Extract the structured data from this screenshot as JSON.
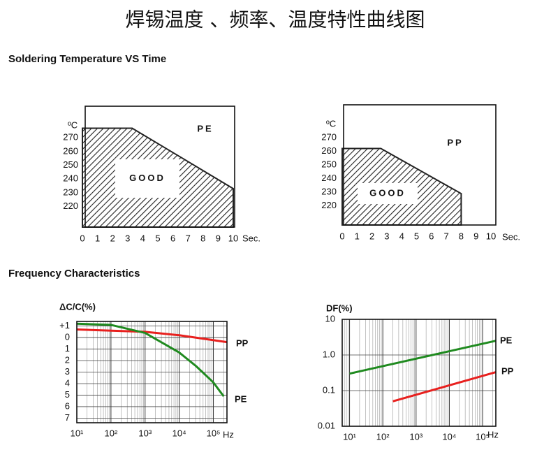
{
  "title": "焊锡温度 、频率、温度特性曲线图",
  "sections": [
    "Soldering Temperature VS Time",
    "Frequency Characteristics"
  ],
  "chart_data": [
    {
      "type": "area",
      "label": "PE",
      "annotation": "GOOD",
      "xlabel": "Sec.",
      "ylabel": "ºC",
      "x": [
        0,
        3.3,
        10
      ],
      "values": [
        277,
        277,
        233
      ],
      "color": "#222222",
      "xlim": [
        0,
        10
      ],
      "xticks": [
        0,
        1,
        2,
        3,
        4,
        5,
        6,
        7,
        8,
        9,
        10
      ],
      "ylim": [
        205,
        293
      ],
      "yticks": [
        220,
        230,
        240,
        250,
        260,
        270
      ]
    },
    {
      "type": "area",
      "label": "PP",
      "annotation": "GOOD",
      "xlabel": "Sec.",
      "ylabel": "ºC",
      "x": [
        0,
        2.6,
        8
      ],
      "values": [
        262,
        262,
        229
      ],
      "color": "#222222",
      "xlim": [
        0,
        10
      ],
      "xticks": [
        0,
        1,
        2,
        3,
        4,
        5,
        6,
        7,
        8,
        9,
        10
      ],
      "ylim": [
        206,
        294
      ],
      "yticks": [
        220,
        230,
        240,
        250,
        260,
        270
      ]
    },
    {
      "type": "line",
      "ylabel": "ΔC/C(%)",
      "xlabel": "Hz",
      "xlog": true,
      "grid": true,
      "xlim": [
        10,
        250000
      ],
      "xticks": [
        {
          "value": 10,
          "label": "10¹"
        },
        {
          "value": 100,
          "label": "10²"
        },
        {
          "value": 1000,
          "label": "10³"
        },
        {
          "value": 10000,
          "label": "10⁴"
        },
        {
          "value": 100000,
          "label": "10⁵"
        }
      ],
      "ylim": [
        -7.4,
        1.4
      ],
      "yticks": [
        {
          "value": 1,
          "label": "+1"
        },
        0,
        {
          "value": -1,
          "label": "1"
        },
        {
          "value": -2,
          "label": "2"
        },
        {
          "value": -3,
          "label": "3"
        },
        {
          "value": -4,
          "label": "4"
        },
        {
          "value": -5,
          "label": "5"
        },
        {
          "value": -6,
          "label": "6"
        },
        {
          "value": -7,
          "label": "7"
        }
      ],
      "series": [
        {
          "name": "PP",
          "color": "#e8201e",
          "x": [
            10,
            1000,
            10000,
            250000
          ],
          "values": [
            0.7,
            0.5,
            0.2,
            -0.4
          ]
        },
        {
          "name": "PE",
          "color": "#1f8a1f",
          "x": [
            10,
            100,
            1000,
            10000,
            31600,
            100000,
            200000
          ],
          "values": [
            1.2,
            1.1,
            0.4,
            -1.3,
            -2.5,
            -3.9,
            -5.1
          ]
        }
      ]
    },
    {
      "type": "line",
      "ylabel": "DF(%)",
      "xlabel": "Hz",
      "xlog": true,
      "ylog": true,
      "grid": true,
      "xlim": [
        6,
        250000
      ],
      "xticks": [
        {
          "value": 10,
          "label": "10¹"
        },
        {
          "value": 100,
          "label": "10²"
        },
        {
          "value": 1000,
          "label": "10³"
        },
        {
          "value": 10000,
          "label": "10⁴"
        },
        {
          "value": 100000,
          "label": "10⁵"
        }
      ],
      "ylim": [
        0.01,
        10
      ],
      "yticks": [
        10,
        {
          "value": 1,
          "label": "1.0"
        },
        0.1,
        0.01
      ],
      "series": [
        {
          "name": "PE",
          "color": "#1f8a1f",
          "x": [
            10,
            250000
          ],
          "values": [
            0.3,
            2.5
          ]
        },
        {
          "name": "PP",
          "color": "#e8201e",
          "x": [
            200,
            250000
          ],
          "values": [
            0.05,
            0.33
          ]
        }
      ]
    }
  ]
}
